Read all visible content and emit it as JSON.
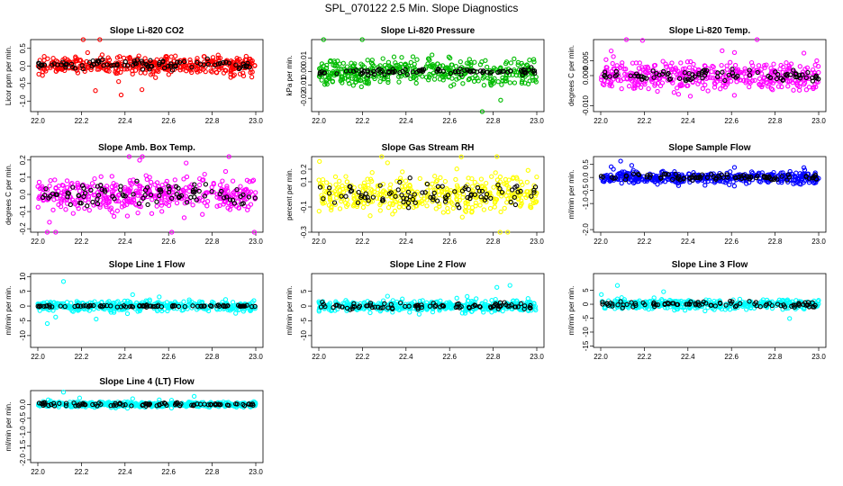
{
  "page_title": "SPL_070122  2.5 Min. Slope Diagnostics",
  "chart_data": [
    {
      "type": "scatter",
      "title": "Slope Li-820 CO2",
      "ylabel": "Licor ppm per min.",
      "xlim": [
        22.0,
        23.0
      ],
      "ylim": [
        -1.3,
        0.75
      ],
      "xticks": [
        "22.0",
        "22.2",
        "22.4",
        "22.6",
        "22.8",
        "23.0"
      ],
      "yticks": [
        "-1.0",
        "-0.5",
        "0.0",
        "0.5"
      ],
      "ytick_values": [
        -1.0,
        -0.5,
        0.0,
        0.5
      ],
      "series": [
        {
          "color": "#ff0000",
          "center": 0.02,
          "spread": 0.22
        },
        {
          "color": "#000000",
          "center": 0.03,
          "spread": 0.14
        }
      ]
    },
    {
      "type": "scatter",
      "title": "Slope Li-820 Pressure",
      "ylabel": "kPa per min.",
      "xlim": [
        22.0,
        23.0
      ],
      "ylim": [
        -0.03,
        0.024
      ],
      "xticks": [
        "22.0",
        "22.2",
        "22.4",
        "22.6",
        "22.8",
        "23.0"
      ],
      "yticks": [
        "-0.02",
        "-0.01",
        "0.00",
        "0.01"
      ],
      "ytick_values": [
        -0.02,
        -0.01,
        0.0,
        0.01
      ],
      "series": [
        {
          "color": "#00bb00",
          "center": 0.0,
          "spread": 0.009
        },
        {
          "color": "#000000",
          "center": 0.0,
          "spread": 0.002
        }
      ]
    },
    {
      "type": "scatter",
      "title": "Slope Li-820 Temp.",
      "ylabel": "degrees C per min.",
      "xlim": [
        22.0,
        23.0
      ],
      "ylim": [
        -0.012,
        0.012
      ],
      "xticks": [
        "22.0",
        "22.2",
        "22.4",
        "22.6",
        "22.8",
        "23.0"
      ],
      "yticks": [
        "-0.010",
        "0.000",
        "0.005"
      ],
      "ytick_values": [
        -0.01,
        0.0,
        0.005
      ],
      "series": [
        {
          "color": "#ff00ff",
          "center": 0.0,
          "spread": 0.004
        },
        {
          "color": "#000000",
          "center": 0.0,
          "spread": 0.002
        }
      ]
    },
    {
      "type": "scatter",
      "title": "Slope Amb. Box Temp.",
      "ylabel": "degrees C per min.",
      "xlim": [
        22.0,
        23.0
      ],
      "ylim": [
        -0.22,
        0.22
      ],
      "xticks": [
        "22.0",
        "22.2",
        "22.4",
        "22.6",
        "22.8",
        "23.0"
      ],
      "yticks": [
        "-0.2",
        "-0.1",
        "0.0",
        "0.1",
        "0.2"
      ],
      "ytick_values": [
        -0.2,
        -0.1,
        0.0,
        0.1,
        0.2
      ],
      "series": [
        {
          "color": "#ff00ff",
          "center": 0.0,
          "spread": 0.09
        },
        {
          "color": "#000000",
          "center": 0.0,
          "spread": 0.06
        }
      ]
    },
    {
      "type": "scatter",
      "title": "Slope Gas Stream RH",
      "ylabel": "percent per min.",
      "xlim": [
        22.0,
        23.0
      ],
      "ylim": [
        -0.3,
        0.3
      ],
      "xticks": [
        "22.0",
        "22.2",
        "22.4",
        "22.6",
        "22.8",
        "23.0"
      ],
      "yticks": [
        "-0.3",
        "-0.1",
        "0.1",
        "0.2"
      ],
      "ytick_values": [
        -0.3,
        -0.1,
        0.1,
        0.2
      ],
      "series": [
        {
          "color": "#ffff00",
          "center": 0.0,
          "spread": 0.12
        },
        {
          "color": "#000000",
          "center": 0.0,
          "spread": 0.09
        }
      ]
    },
    {
      "type": "scatter",
      "title": "Slope Sample Flow",
      "ylabel": "ml/min per min.",
      "xlim": [
        22.0,
        23.0
      ],
      "ylim": [
        -2.1,
        0.8
      ],
      "xticks": [
        "22.0",
        "22.2",
        "22.4",
        "22.6",
        "22.8",
        "23.0"
      ],
      "yticks": [
        "-2.0",
        "-1.0",
        "-0.5",
        "0.0",
        "0.5"
      ],
      "ytick_values": [
        -2.0,
        -1.0,
        -0.5,
        0.0,
        0.5
      ],
      "series": [
        {
          "color": "#0000ff",
          "center": 0.0,
          "spread": 0.2
        },
        {
          "color": "#000000",
          "center": 0.0,
          "spread": 0.12
        }
      ]
    },
    {
      "type": "scatter",
      "title": "Slope Line 1 Flow",
      "ylabel": "ml/min per min.",
      "xlim": [
        22.0,
        23.0
      ],
      "ylim": [
        -14,
        11
      ],
      "xticks": [
        "22.0",
        "22.2",
        "22.4",
        "22.6",
        "22.8",
        "23.0"
      ],
      "yticks": [
        "-10",
        "-5",
        "0",
        "5",
        "10"
      ],
      "ytick_values": [
        -10,
        -5,
        0,
        5,
        10
      ],
      "series": [
        {
          "color": "#00ffff",
          "center": 0.0,
          "spread": 1.5
        },
        {
          "color": "#000000",
          "center": 0.0,
          "spread": 0.3
        }
      ]
    },
    {
      "type": "scatter",
      "title": "Slope Line 2 Flow",
      "ylabel": "ml/min per min.",
      "xlim": [
        22.0,
        23.0
      ],
      "ylim": [
        -14,
        11
      ],
      "xticks": [
        "22.0",
        "22.2",
        "22.4",
        "22.6",
        "22.8",
        "23.0"
      ],
      "yticks": [
        "-10",
        "-5",
        "0",
        "5"
      ],
      "ytick_values": [
        -10,
        -5,
        0,
        5
      ],
      "series": [
        {
          "color": "#00ffff",
          "center": 0.0,
          "spread": 1.6
        },
        {
          "color": "#000000",
          "center": 0.0,
          "spread": 1.0
        }
      ]
    },
    {
      "type": "scatter",
      "title": "Slope Line 3 Flow",
      "ylabel": "ml/min per min.",
      "xlim": [
        22.0,
        23.0
      ],
      "ylim": [
        -15.5,
        11
      ],
      "xticks": [
        "22.0",
        "22.2",
        "22.4",
        "22.6",
        "22.8",
        "23.0"
      ],
      "yticks": [
        "-15",
        "-10",
        "-5",
        "0",
        "5"
      ],
      "ytick_values": [
        -15,
        -10,
        -5,
        0,
        5
      ],
      "series": [
        {
          "color": "#00ffff",
          "center": 0.0,
          "spread": 1.6
        },
        {
          "color": "#000000",
          "center": 0.0,
          "spread": 1.0
        }
      ]
    },
    {
      "type": "scatter",
      "title": "Slope Line 4 (LT) Flow",
      "ylabel": "ml/min per min.",
      "xlim": [
        22.0,
        23.0
      ],
      "ylim": [
        -2.1,
        0.5
      ],
      "xticks": [
        "22.0",
        "22.2",
        "22.4",
        "22.6",
        "22.8",
        "23.0"
      ],
      "yticks": [
        "-2.0",
        "-1.5",
        "-1.0",
        "-0.5",
        "0.0"
      ],
      "ytick_values": [
        -2.0,
        -1.5,
        -1.0,
        -0.5,
        0.0
      ],
      "series": [
        {
          "color": "#00ffff",
          "center": 0.0,
          "spread": 0.08
        },
        {
          "color": "#000000",
          "center": 0.0,
          "spread": 0.06
        }
      ]
    }
  ]
}
